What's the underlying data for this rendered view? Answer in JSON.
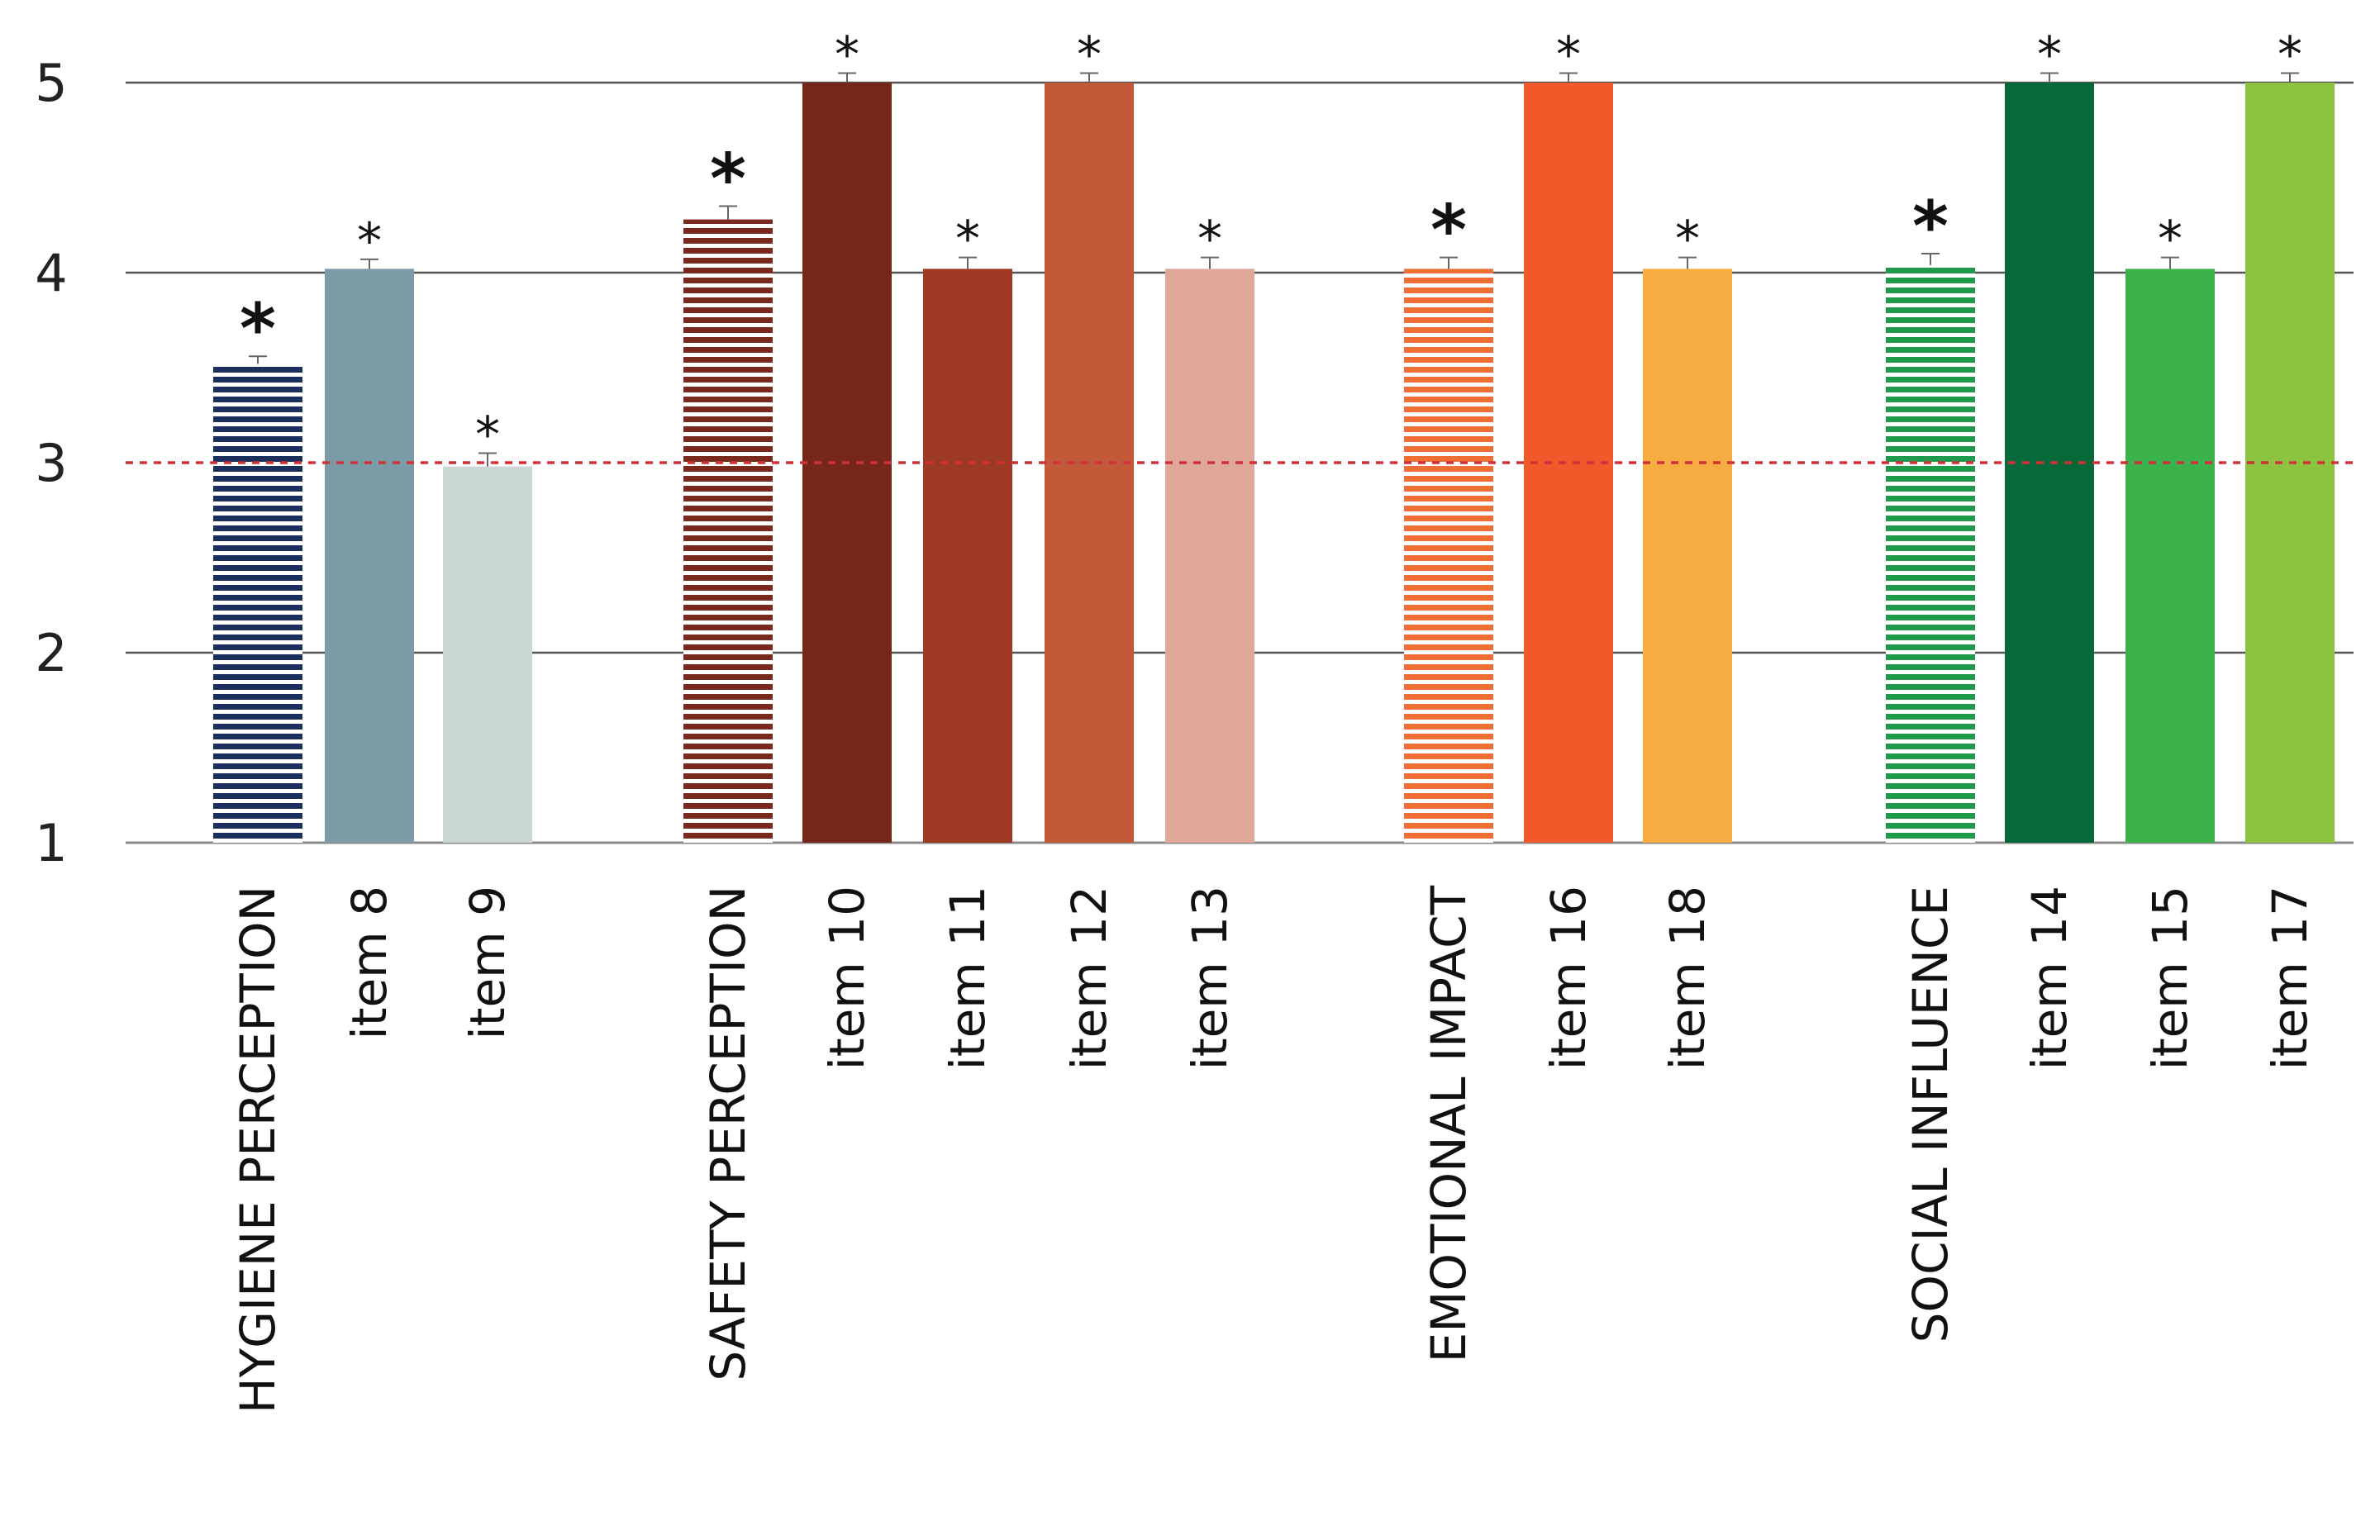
{
  "chart_data": {
    "type": "bar",
    "title": "",
    "xlabel": "",
    "ylabel": "",
    "ylim": [
      1,
      5
    ],
    "yticks": [
      1,
      2,
      3,
      4,
      5
    ],
    "reference_line": {
      "value": 3,
      "color": "#d0303a",
      "style": "dashed"
    },
    "gridlines": [
      2,
      4,
      5
    ],
    "categories": [
      "HYGIENE PERCEPTION",
      "item 8",
      "item 9",
      "SAFETY PERCEPTION",
      "item 10",
      "item 11",
      "item 12",
      "item 13",
      "EMOTIONAL IMPACT",
      "item 16",
      "item 18",
      "SOCIAL INFLUENCE",
      "item 14",
      "item 15",
      "item 17"
    ],
    "values": [
      3.52,
      4.02,
      2.98,
      4.28,
      5.0,
      4.02,
      5.0,
      4.02,
      4.02,
      5.0,
      4.02,
      4.04,
      5.0,
      4.02,
      5.0
    ],
    "error": [
      0.04,
      0.05,
      0.07,
      0.07,
      0.05,
      0.06,
      0.05,
      0.06,
      0.06,
      0.05,
      0.06,
      0.06,
      0.05,
      0.06,
      0.05
    ],
    "significance": [
      "*",
      "*",
      "*",
      "*",
      "*",
      "*",
      "*",
      "*",
      "*",
      "*",
      "*",
      "*",
      "*",
      "*",
      "*"
    ],
    "colors": [
      "#1b2f5c",
      "#7b9ba6",
      "#c9d8d5",
      "#7a2a1c",
      "#77261a",
      "#9e3a23",
      "#c25a3a",
      "#e0a898",
      "#f06e33",
      "#f05a2a",
      "#f8ad43",
      "#1e9a4a",
      "#076939",
      "#3bb34a",
      "#8dc43f"
    ],
    "striped": [
      true,
      false,
      false,
      true,
      false,
      false,
      false,
      false,
      true,
      false,
      false,
      true,
      false,
      false,
      false
    ],
    "groups": [
      "hygiene",
      "hygiene",
      "hygiene",
      "safety",
      "safety",
      "safety",
      "safety",
      "safety",
      "emotional",
      "emotional",
      "emotional",
      "social",
      "social",
      "social",
      "social"
    ]
  }
}
